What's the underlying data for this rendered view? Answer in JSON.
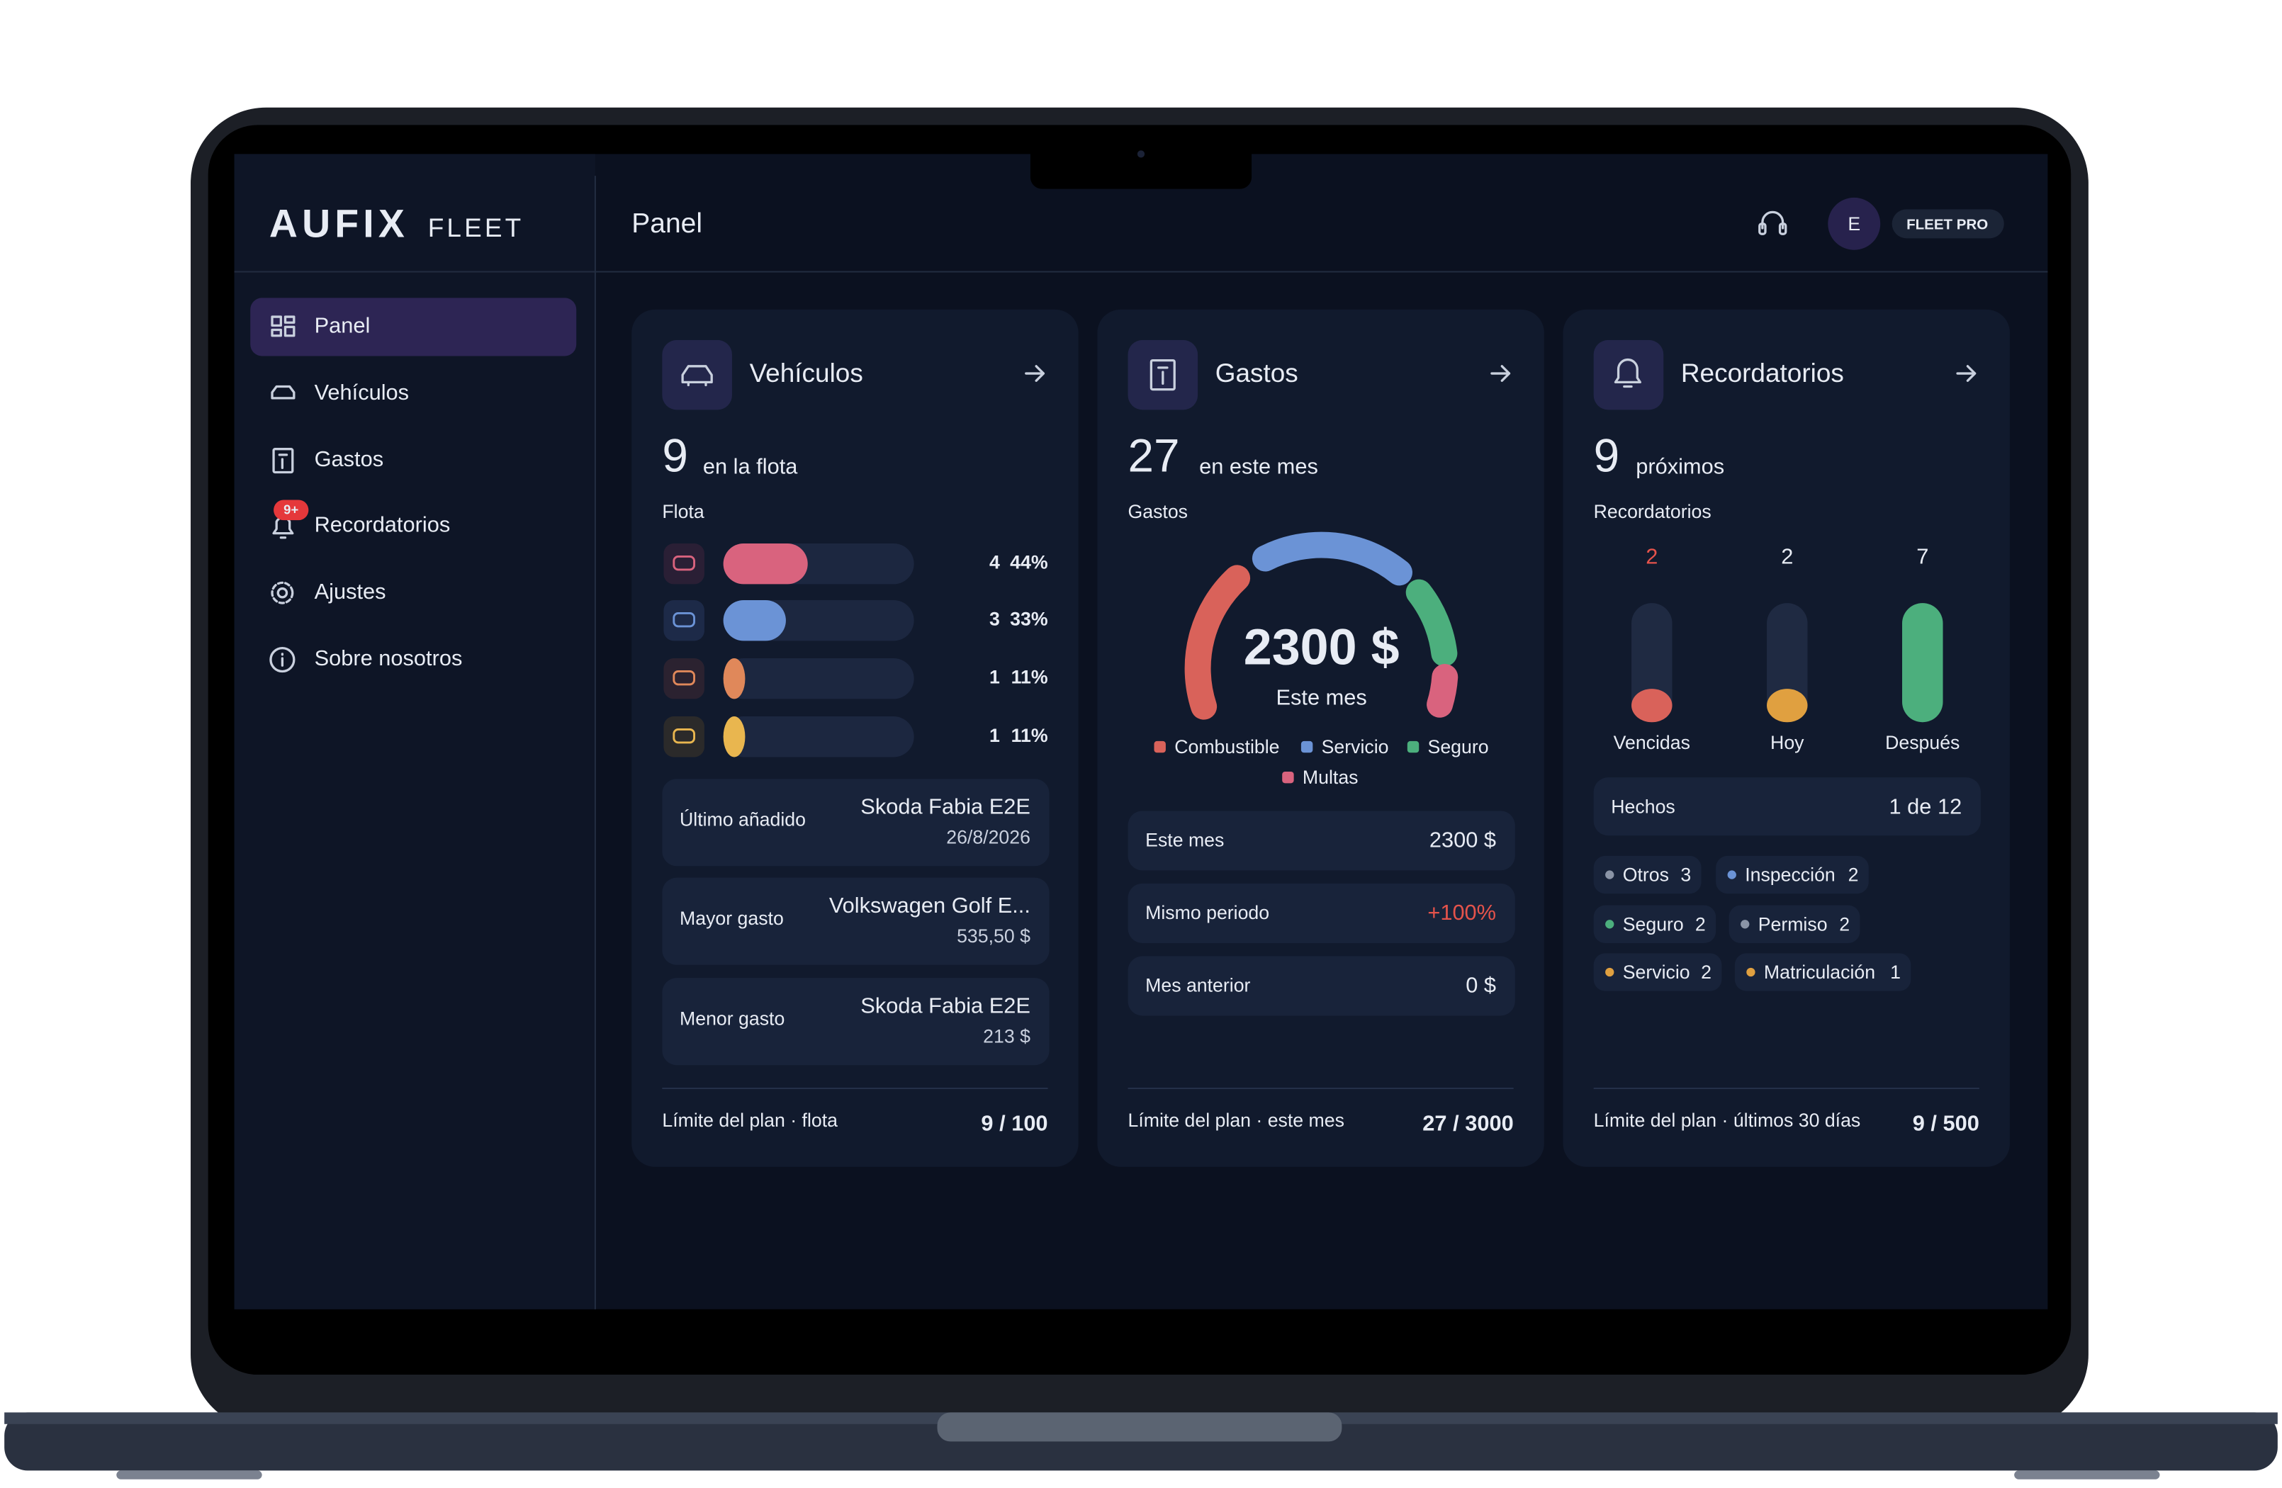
{
  "logo": {
    "brand": "AUFIX",
    "product": "FLEET"
  },
  "header": {
    "title": "Panel",
    "avatar": "E",
    "plan": "FLEET PRO"
  },
  "nav": [
    "Panel",
    "Vehículos",
    "Gastos",
    "Recordatorios",
    "Ajustes",
    "Sobre nosotros"
  ],
  "nav_badge": "9+",
  "vehicles": {
    "title": "Vehículos",
    "count": 9,
    "count_label": "en la flota",
    "section": "Flota",
    "rows": [
      {
        "count": 4,
        "percent": "44%"
      },
      {
        "count": 3,
        "percent": "33%"
      },
      {
        "count": 1,
        "percent": "11%"
      },
      {
        "count": 1,
        "percent": "11%"
      }
    ],
    "info": [
      {
        "label": "Último añadido",
        "value": "Skoda Fabia E2E",
        "sub": "26/8/2026"
      },
      {
        "label": "Mayor gasto",
        "value": "Volkswagen Golf E...",
        "sub": "535,50 $"
      },
      {
        "label": "Menor gasto",
        "value": "Skoda Fabia E2E",
        "sub": "213 $"
      }
    ],
    "footer": {
      "label": "Límite del plan · flota",
      "value": "9 / 100"
    }
  },
  "expenses": {
    "title": "Gastos",
    "count": 27,
    "count_label": "en este mes",
    "section": "Gastos",
    "gauge_value": "2300 $",
    "gauge_label": "Este mes",
    "legend": [
      "Combustible",
      "Servicio",
      "Seguro",
      "Multas"
    ],
    "info": [
      {
        "label": "Este mes",
        "value": "2300 $"
      },
      {
        "label": "Mismo periodo",
        "value": "+100%"
      },
      {
        "label": "Mes anterior",
        "value": "0 $"
      }
    ],
    "footer": {
      "label": "Límite del plan · este mes",
      "value": "27 / 3000"
    }
  },
  "reminders": {
    "title": "Recordatorios",
    "count": 9,
    "count_label": "próximos",
    "section": "Recordatorios",
    "columns": [
      {
        "count": 2,
        "label": "Vencidas"
      },
      {
        "count": 2,
        "label": "Hoy"
      },
      {
        "count": 7,
        "label": "Después"
      }
    ],
    "done": {
      "label": "Hechos",
      "value": "1 de 12"
    },
    "chips": [
      {
        "name": "Otros",
        "count": 3
      },
      {
        "name": "Inspección",
        "count": 2
      },
      {
        "name": "Seguro",
        "count": 2
      },
      {
        "name": "Permiso",
        "count": 2
      },
      {
        "name": "Servicio",
        "count": 2
      },
      {
        "name": "Matriculación",
        "count": 1
      }
    ],
    "footer": {
      "label": "Límite del plan · últimos 30 días",
      "value": "9 / 500"
    }
  }
}
